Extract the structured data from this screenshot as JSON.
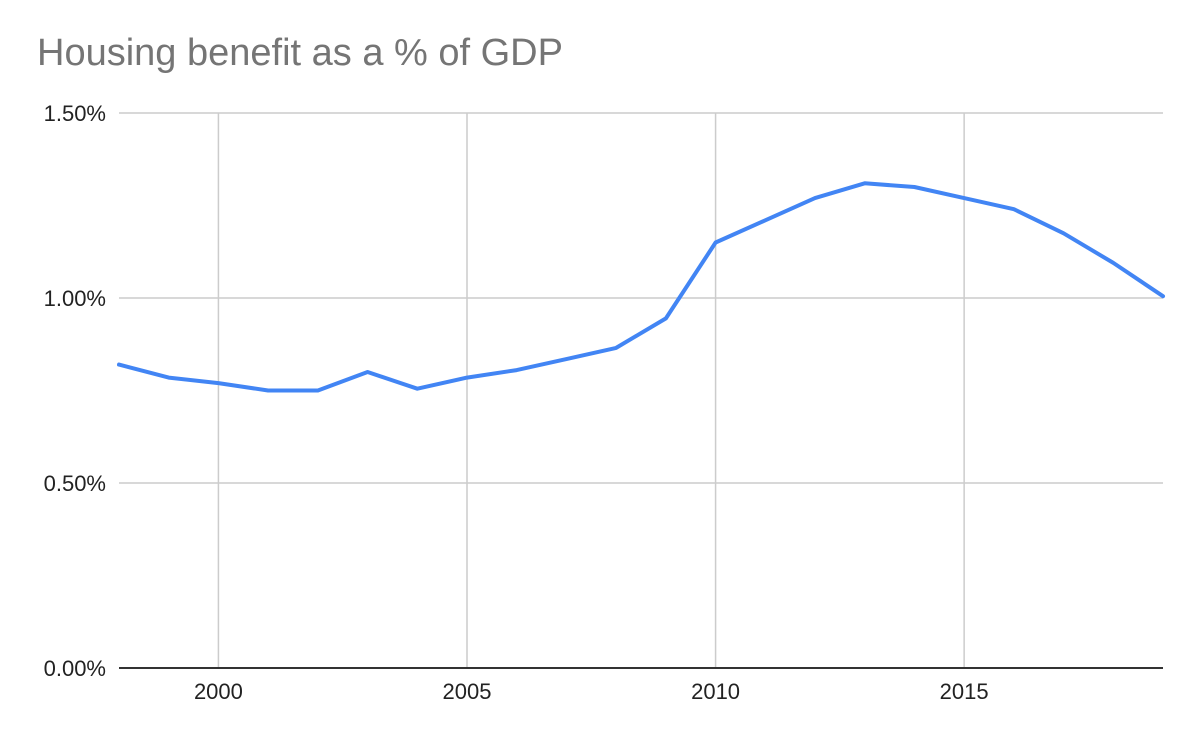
{
  "chart_data": {
    "type": "line",
    "title": "Housing benefit as a % of GDP",
    "xlabel": "",
    "ylabel": "",
    "xlim": [
      1998,
      2019
    ],
    "ylim": [
      0,
      1.5
    ],
    "x_ticks": [
      2000,
      2005,
      2010,
      2015
    ],
    "x_tick_labels": [
      "2000",
      "2005",
      "2010",
      "2015"
    ],
    "y_ticks": [
      0,
      0.5,
      1.0,
      1.5
    ],
    "y_tick_labels": [
      "0.00%",
      "0.50%",
      "1.00%",
      "1.50%"
    ],
    "grid": true,
    "legend": "none",
    "series": [
      {
        "name": "Housing benefit as a % of GDP",
        "color": "#4285f4",
        "x": [
          1998,
          1999,
          2000,
          2001,
          2002,
          2003,
          2004,
          2005,
          2006,
          2007,
          2008,
          2009,
          2010,
          2011,
          2012,
          2013,
          2014,
          2015,
          2016,
          2017,
          2018,
          2019
        ],
        "values": [
          0.82,
          0.785,
          0.77,
          0.75,
          0.75,
          0.8,
          0.755,
          0.785,
          0.805,
          0.835,
          0.865,
          0.945,
          1.15,
          1.21,
          1.27,
          1.31,
          1.3,
          1.27,
          1.24,
          1.175,
          1.095,
          1.005
        ]
      }
    ]
  }
}
